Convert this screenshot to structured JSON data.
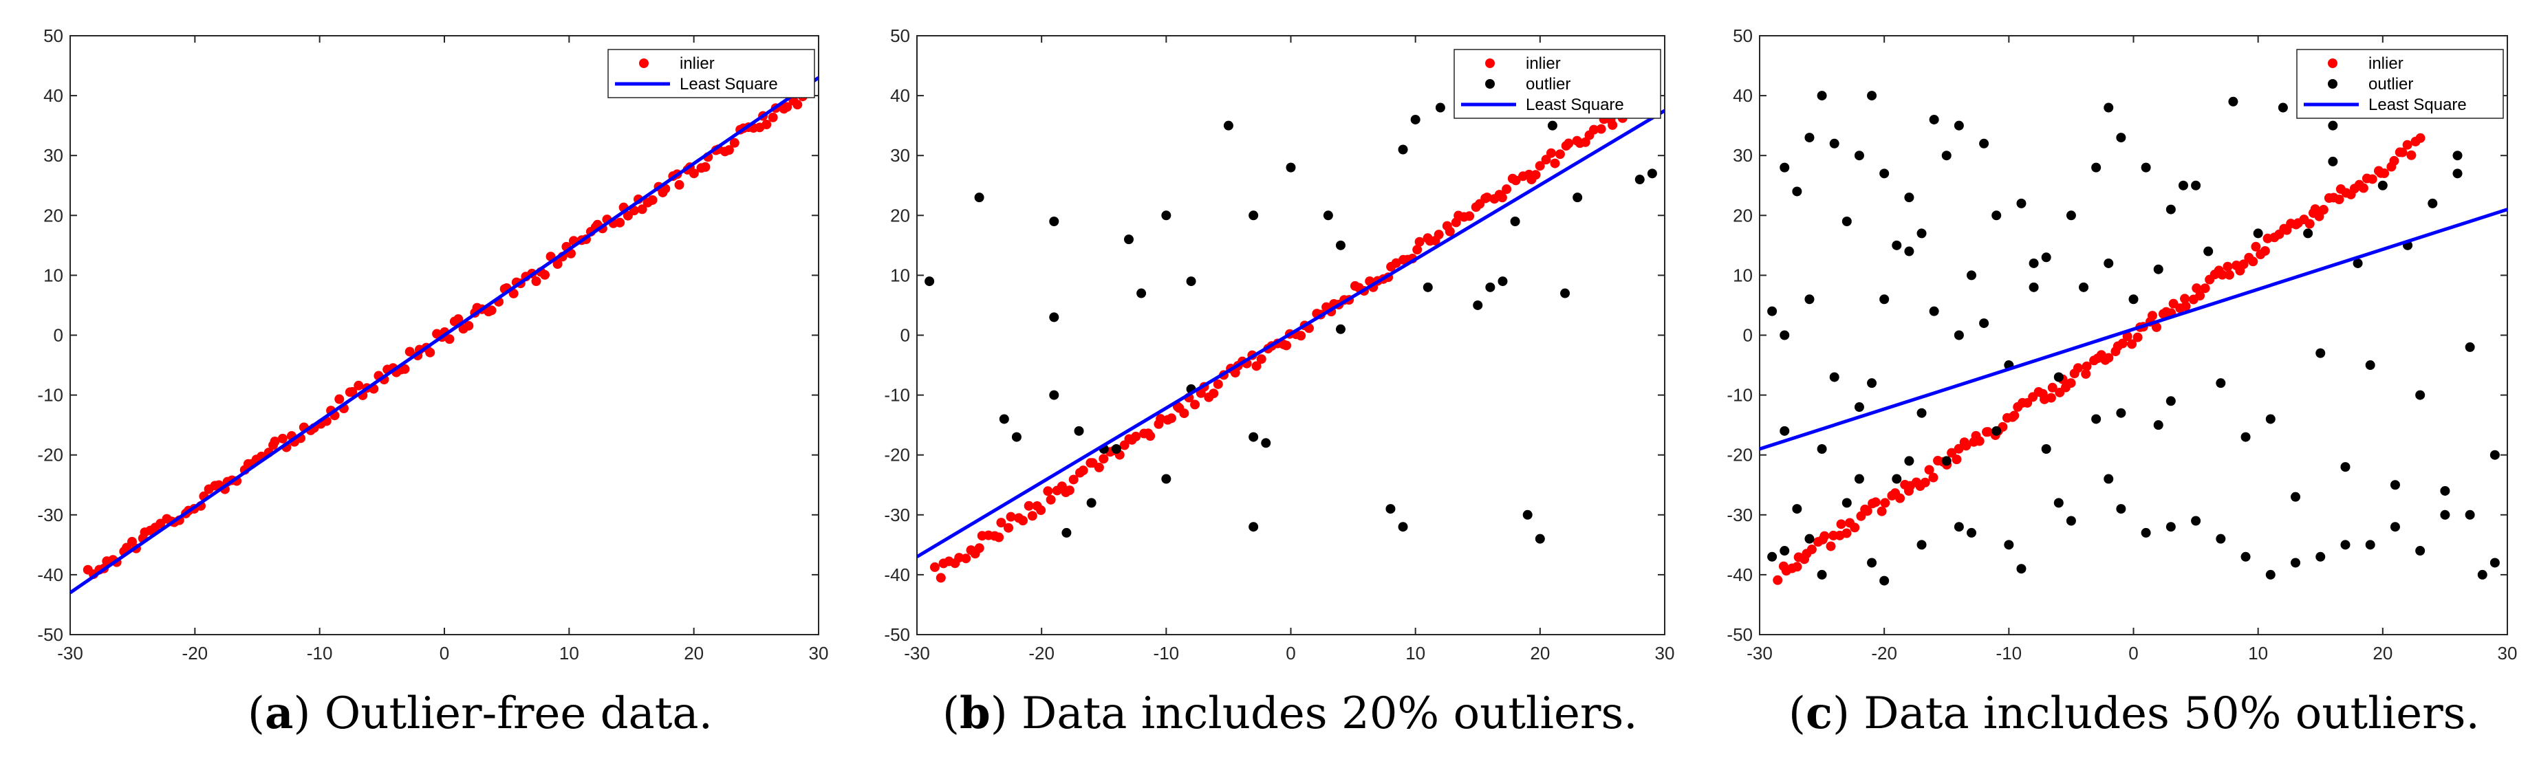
{
  "colors": {
    "inlier": "#ff0000",
    "outlier": "#000000",
    "line": "#0000ff"
  },
  "chart_data": [
    {
      "type": "scatter",
      "panel": "a",
      "caption": {
        "letter": "a",
        "text": "Outlier-free data."
      },
      "xlim": [
        -30,
        30
      ],
      "ylim": [
        -50,
        50
      ],
      "xticks": [
        -30,
        -20,
        -10,
        0,
        10,
        20,
        30
      ],
      "yticks": [
        50,
        40,
        30,
        20,
        10,
        0,
        -10,
        -20,
        -30,
        -40,
        -50
      ],
      "legend": [
        "inlier",
        "Least Square"
      ],
      "legend_position": "top-right",
      "series": [
        {
          "name": "inlier",
          "kind": "points",
          "model": {
            "slope": 1.4,
            "intercept": 0,
            "noise": 1.3,
            "x_range": [
              -28.5,
              29
            ],
            "count": 150
          }
        },
        {
          "name": "Least Square",
          "kind": "line",
          "x": [
            -30,
            30
          ],
          "y": [
            -43,
            43
          ]
        }
      ]
    },
    {
      "type": "scatter",
      "panel": "b",
      "caption": {
        "letter": "b",
        "text": "Data includes 20% outliers."
      },
      "xlim": [
        -30,
        30
      ],
      "ylim": [
        -50,
        50
      ],
      "xticks": [
        -30,
        -20,
        -10,
        0,
        10,
        20,
        30
      ],
      "yticks": [
        50,
        40,
        30,
        20,
        10,
        0,
        -10,
        -20,
        -30,
        -40,
        -50
      ],
      "legend": [
        "inlier",
        "outlier",
        "Least Square"
      ],
      "legend_position": "top-right",
      "series": [
        {
          "name": "inlier",
          "kind": "points",
          "model": {
            "slope": 1.4,
            "intercept": 0,
            "noise": 1.3,
            "x_range": [
              -28.5,
              29
            ],
            "count": 150
          }
        },
        {
          "name": "outlier",
          "kind": "points",
          "x": [
            -29,
            -25,
            -19,
            -19,
            -19,
            -22,
            -23,
            -17,
            -13,
            -12,
            -8,
            -10,
            -8,
            -15,
            -18,
            -10,
            -5,
            -3,
            0,
            3,
            4,
            4,
            9,
            10,
            11,
            8,
            9,
            12,
            15,
            16,
            17,
            18,
            19,
            20,
            21,
            22,
            23,
            28,
            29,
            -3,
            -2,
            -14,
            -16,
            -3
          ],
          "y": [
            9,
            23,
            19,
            3,
            -10,
            -17,
            -14,
            -16,
            16,
            7,
            9,
            -24,
            -9,
            -19,
            -33,
            20,
            35,
            20,
            28,
            20,
            15,
            1,
            31,
            36,
            8,
            -29,
            -32,
            38,
            5,
            8,
            9,
            19,
            -30,
            -34,
            35,
            7,
            23,
            26,
            27,
            -32,
            -18,
            -19,
            -28,
            -17
          ]
        },
        {
          "name": "Least Square",
          "kind": "line",
          "x": [
            -30,
            30
          ],
          "y": [
            -37,
            37.5
          ]
        }
      ]
    },
    {
      "type": "scatter",
      "panel": "c",
      "caption": {
        "letter": "c",
        "text": "Data includes 50% outliers."
      },
      "xlim": [
        -30,
        30
      ],
      "ylim": [
        -50,
        50
      ],
      "xticks": [
        -30,
        -20,
        -10,
        0,
        10,
        20,
        30
      ],
      "yticks": [
        50,
        40,
        30,
        20,
        10,
        0,
        -10,
        -20,
        -30,
        -40,
        -50
      ],
      "legend": [
        "inlier",
        "outlier",
        "Least Square"
      ],
      "legend_position": "top-right",
      "series": [
        {
          "name": "inlier",
          "kind": "points",
          "model": {
            "slope": 1.4,
            "intercept": 0,
            "noise": 1.3,
            "x_range": [
              -28.5,
              23
            ],
            "count": 150
          }
        },
        {
          "name": "outlier",
          "kind": "points",
          "x": [
            -25,
            -21,
            -28,
            -26,
            -24,
            -22,
            -20,
            -18,
            -16,
            -14,
            -12,
            -27,
            -23,
            -19,
            -17,
            -15,
            -11,
            -9,
            -7,
            -5,
            -3,
            -1,
            1,
            3,
            -28,
            -25,
            -22,
            -18,
            -13,
            -8,
            -2,
            4,
            8,
            12,
            16,
            20,
            24,
            -29,
            -26,
            -20,
            -16,
            -12,
            -8,
            -4,
            0,
            2,
            6,
            10,
            14,
            18,
            22,
            26,
            -28,
            -24,
            -21,
            -17,
            -14,
            -10,
            -6,
            -3,
            2,
            7,
            11,
            15,
            19,
            23,
            27,
            -27,
            -23,
            -19,
            -15,
            -11,
            -7,
            -1,
            3,
            9,
            13,
            17,
            21,
            25,
            29,
            -29,
            -26,
            -22,
            -18,
            -14,
            -10,
            -6,
            -2,
            1,
            5,
            9,
            13,
            17,
            21,
            25,
            28,
            -28,
            -25,
            -21,
            -17,
            -13,
            -9,
            -5,
            -1,
            3,
            7,
            11,
            15,
            19,
            23,
            27,
            29,
            -20,
            -2,
            5,
            16,
            26
          ],
          "y": [
            40,
            40,
            28,
            33,
            32,
            30,
            27,
            23,
            36,
            35,
            32,
            24,
            19,
            15,
            17,
            30,
            20,
            22,
            13,
            20,
            28,
            33,
            28,
            21,
            -16,
            -19,
            -12,
            14,
            10,
            12,
            12,
            25,
            39,
            38,
            35,
            25,
            22,
            4,
            6,
            6,
            4,
            2,
            8,
            8,
            6,
            11,
            14,
            17,
            17,
            12,
            15,
            27,
            0,
            -7,
            -8,
            -13,
            0,
            -5,
            -7,
            -14,
            -15,
            -8,
            -14,
            -3,
            -5,
            -10,
            -2,
            -29,
            -28,
            -24,
            -21,
            -16,
            -19,
            -13,
            -11,
            -17,
            -27,
            -22,
            -25,
            -26,
            -20,
            -37,
            -34,
            -24,
            -21,
            -32,
            -35,
            -28,
            -24,
            -33,
            -31,
            -37,
            -38,
            -35,
            -32,
            -30,
            -40,
            -36,
            -40,
            -38,
            -35,
            -33,
            -39,
            -31,
            -29,
            -32,
            -34,
            -40,
            -37,
            -35,
            -36,
            -30,
            -38,
            -41,
            38,
            25,
            29,
            30
          ]
        },
        {
          "name": "Least Square",
          "kind": "line",
          "x": [
            -30,
            30
          ],
          "y": [
            -19,
            21
          ]
        }
      ]
    }
  ],
  "captions": [
    {
      "letter": "a",
      "text": "Outlier-free data."
    },
    {
      "letter": "b",
      "text": "Data includes 20% outliers."
    },
    {
      "letter": "c",
      "text": "Data includes 50% outliers."
    }
  ]
}
